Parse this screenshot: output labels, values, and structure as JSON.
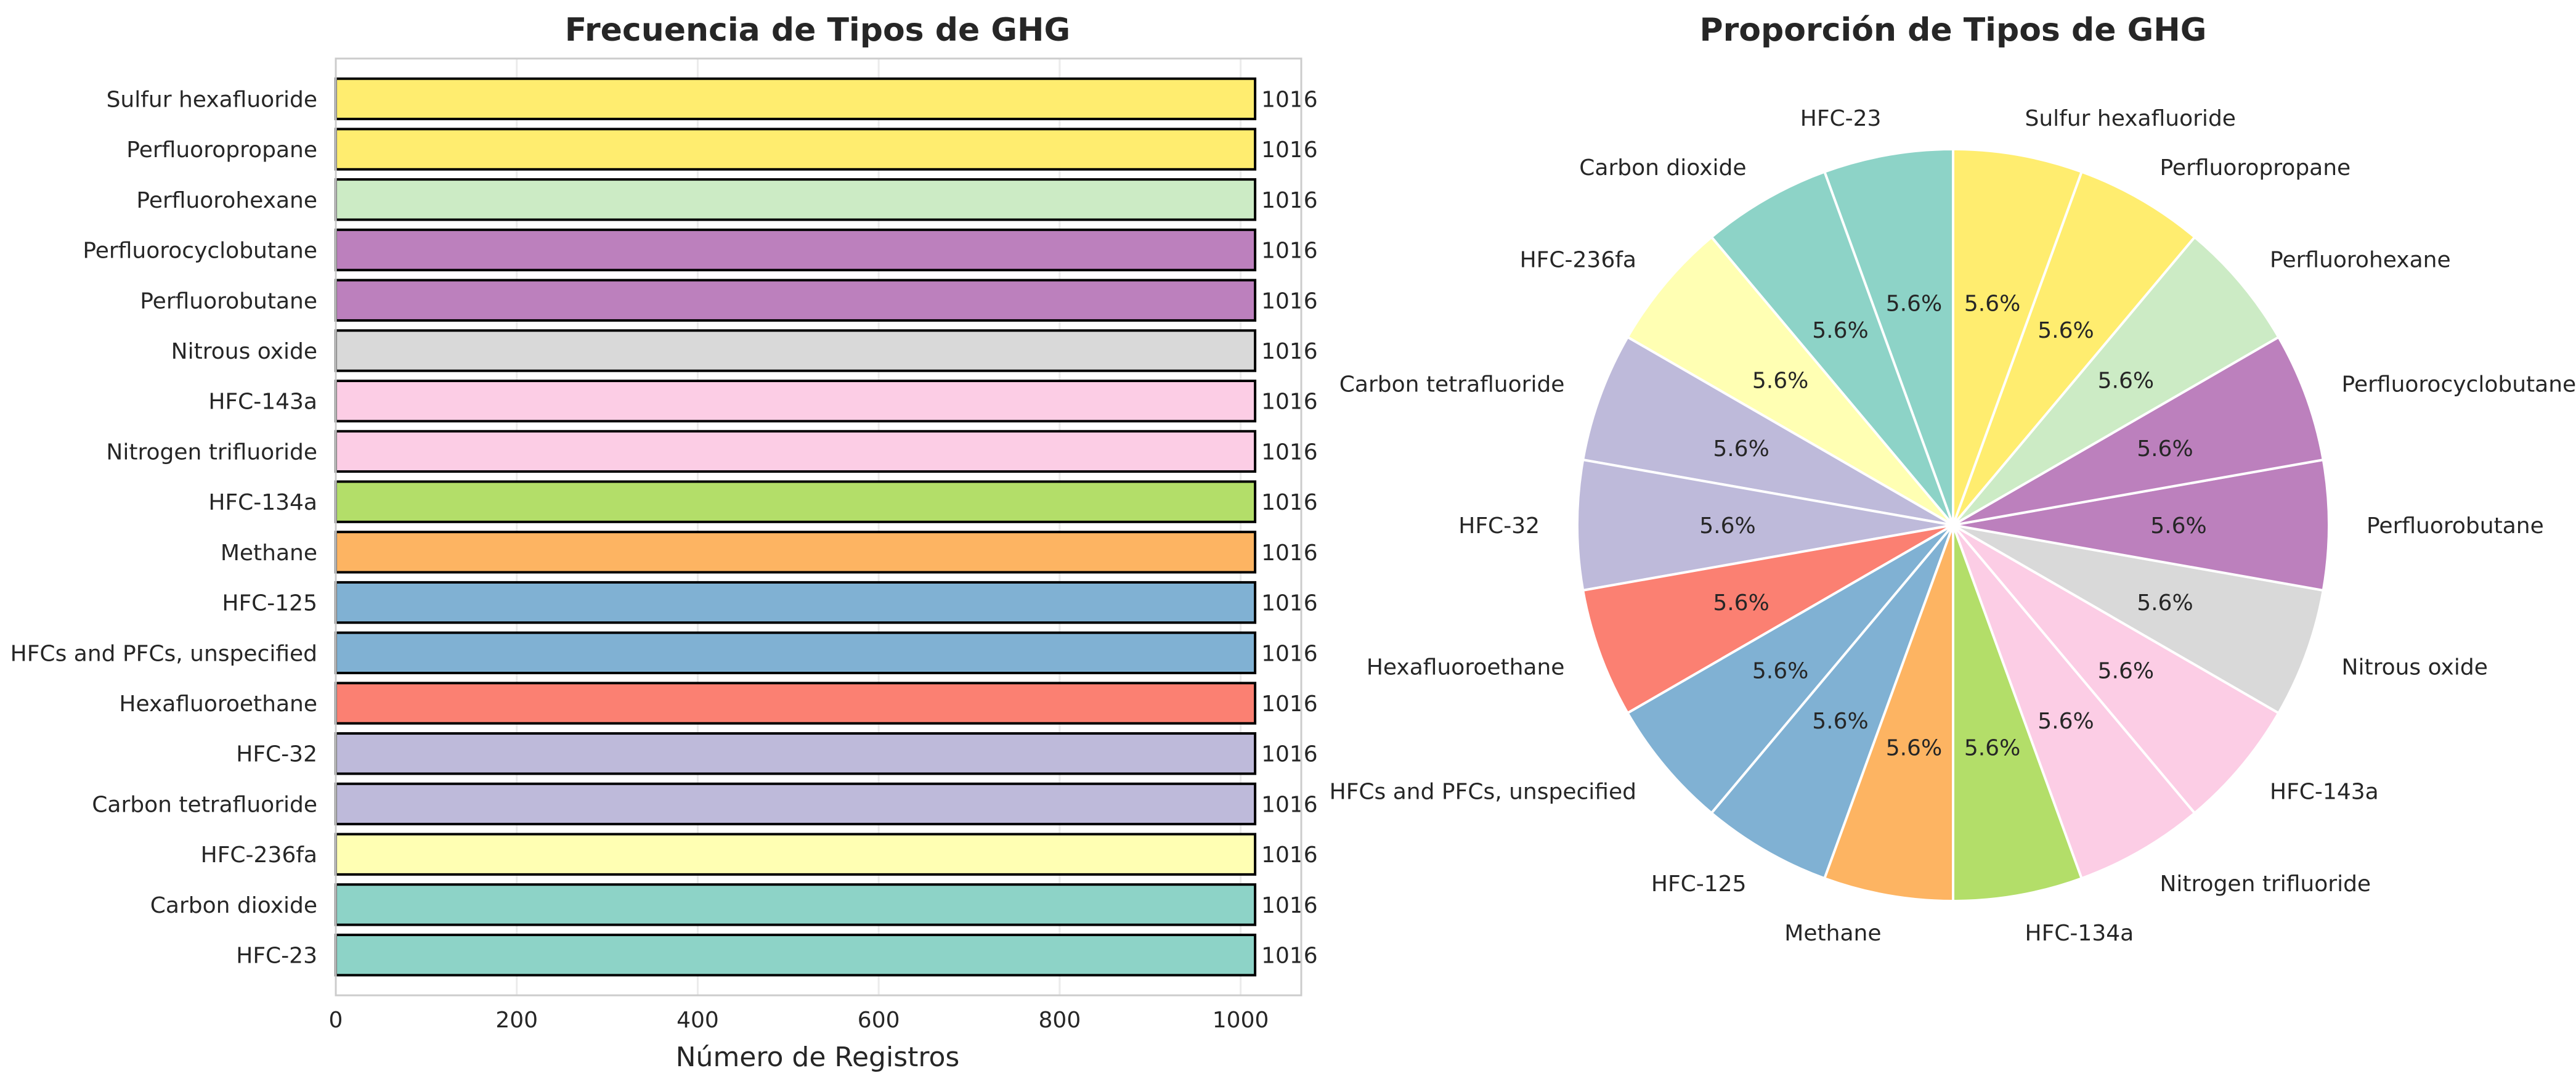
{
  "chart_data": [
    {
      "type": "bar",
      "orientation": "horizontal",
      "title": "Frecuencia de Tipos de GHG",
      "xlabel": "Número de Registros",
      "ylabel": "",
      "xlim": [
        0,
        1067
      ],
      "xticks": [
        0,
        200,
        400,
        600,
        800,
        1000
      ],
      "grid": true,
      "categories": [
        "HFC-23",
        "Carbon dioxide",
        "HFC-236fa",
        "Carbon tetrafluoride",
        "HFC-32",
        "Hexafluoroethane",
        "HFCs and PFCs, unspecified",
        "HFC-125",
        "Methane",
        "HFC-134a",
        "Nitrogen trifluoride",
        "HFC-143a",
        "Nitrous oxide",
        "Perfluorobutane",
        "Perfluorocyclobutane",
        "Perfluorohexane",
        "Perfluoropropane",
        "Sulfur hexafluoride"
      ],
      "values": [
        1016,
        1016,
        1016,
        1016,
        1016,
        1016,
        1016,
        1016,
        1016,
        1016,
        1016,
        1016,
        1016,
        1016,
        1016,
        1016,
        1016,
        1016
      ],
      "value_labels": [
        "1016",
        "1016",
        "1016",
        "1016",
        "1016",
        "1016",
        "1016",
        "1016",
        "1016",
        "1016",
        "1016",
        "1016",
        "1016",
        "1016",
        "1016",
        "1016",
        "1016",
        "1016"
      ],
      "colors": [
        "#8dd3c7",
        "#8dd3c7",
        "#ffffb3",
        "#bebada",
        "#bebada",
        "#fb8072",
        "#80b1d3",
        "#80b1d3",
        "#fdb462",
        "#b3de69",
        "#fccde5",
        "#fccde5",
        "#d9d9d9",
        "#bc80bd",
        "#bc80bd",
        "#ccebc5",
        "#ffed6f",
        "#ffed6f"
      ]
    },
    {
      "type": "pie",
      "title": "Proporción de Tipos de GHG",
      "start_angle_deg": 90,
      "direction": "counterclockwise",
      "labels": [
        "HFC-23",
        "Carbon dioxide",
        "HFC-236fa",
        "Carbon tetrafluoride",
        "HFC-32",
        "Hexafluoroethane",
        "HFCs and PFCs, unspecified",
        "HFC-125",
        "Methane",
        "HFC-134a",
        "Nitrogen trifluoride",
        "HFC-143a",
        "Nitrous oxide",
        "Perfluorobutane",
        "Perfluorocyclobutane",
        "Perfluorohexane",
        "Perfluoropropane",
        "Sulfur hexafluoride"
      ],
      "values": [
        1016,
        1016,
        1016,
        1016,
        1016,
        1016,
        1016,
        1016,
        1016,
        1016,
        1016,
        1016,
        1016,
        1016,
        1016,
        1016,
        1016,
        1016
      ],
      "pct_labels": [
        "5.6%",
        "5.6%",
        "5.6%",
        "5.6%",
        "5.6%",
        "5.6%",
        "5.6%",
        "5.6%",
        "5.6%",
        "5.6%",
        "5.6%",
        "5.6%",
        "5.6%",
        "5.6%",
        "5.6%",
        "5.6%",
        "5.6%",
        "5.6%"
      ],
      "colors": [
        "#8dd3c7",
        "#8dd3c7",
        "#ffffb3",
        "#bebada",
        "#bebada",
        "#fb8072",
        "#80b1d3",
        "#80b1d3",
        "#fdb462",
        "#b3de69",
        "#fccde5",
        "#fccde5",
        "#d9d9d9",
        "#bc80bd",
        "#bc80bd",
        "#ccebc5",
        "#ffed6f",
        "#ffed6f"
      ]
    }
  ]
}
